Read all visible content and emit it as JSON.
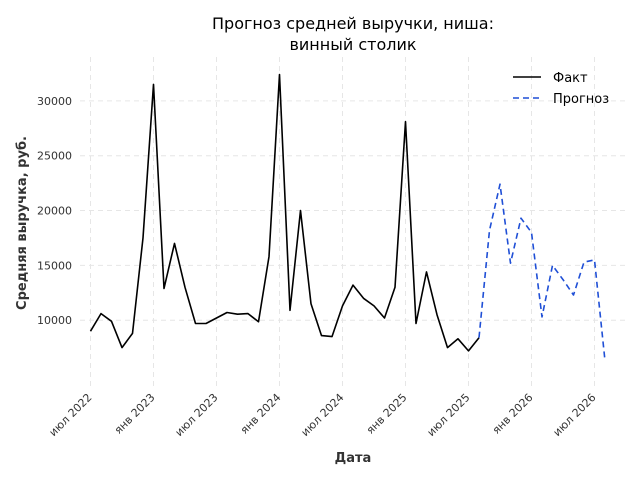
{
  "chart_data": {
    "type": "line",
    "title": [
      "Прогноз средней выручки, ниша:",
      "винный столик"
    ],
    "xlabel": "Дата",
    "ylabel": "Средняя выручка, руб.",
    "ylim": [
      4000,
      34000
    ],
    "yticks": [
      10000,
      15000,
      20000,
      25000,
      30000
    ],
    "xticks": [
      {
        "date": "2022-07",
        "label": "июл 2022"
      },
      {
        "date": "2023-01",
        "label": "янв 2023"
      },
      {
        "date": "2023-07",
        "label": "июл 2023"
      },
      {
        "date": "2024-01",
        "label": "янв 2024"
      },
      {
        "date": "2024-07",
        "label": "июл 2024"
      },
      {
        "date": "2025-01",
        "label": "янв 2025"
      },
      {
        "date": "2025-07",
        "label": "июл 2025"
      },
      {
        "date": "2026-01",
        "label": "янв 2026"
      },
      {
        "date": "2026-07",
        "label": "июл 2026"
      }
    ],
    "xlim": [
      "2022-06",
      "2026-10"
    ],
    "grid": true,
    "legend_position": "top-right",
    "series": [
      {
        "name": "Факт",
        "style": "solid",
        "color": "#000000",
        "x": [
          "2022-07",
          "2022-08",
          "2022-09",
          "2022-10",
          "2022-11",
          "2022-12",
          "2023-01",
          "2023-02",
          "2023-03",
          "2023-04",
          "2023-05",
          "2023-06",
          "2023-07",
          "2023-08",
          "2023-09",
          "2023-10",
          "2023-11",
          "2023-12",
          "2024-01",
          "2024-02",
          "2024-03",
          "2024-04",
          "2024-05",
          "2024-06",
          "2024-07",
          "2024-08",
          "2024-09",
          "2024-10",
          "2024-11",
          "2024-12",
          "2025-01",
          "2025-02",
          "2025-03",
          "2025-04",
          "2025-05",
          "2025-06",
          "2025-07",
          "2025-08"
        ],
        "y": [
          9000,
          10600,
          9900,
          7500,
          8800,
          17500,
          31500,
          12900,
          17000,
          13000,
          9700,
          9700,
          10200,
          10700,
          10550,
          10600,
          9850,
          15800,
          32400,
          10900,
          20000,
          11500,
          8600,
          8500,
          11300,
          13200,
          12000,
          11300,
          10200,
          13000,
          28100,
          9700,
          14400,
          10500,
          7500,
          8300,
          7200,
          8400
        ]
      },
      {
        "name": "Прогноз",
        "style": "dashed",
        "color": "#1f4fd6",
        "x": [
          "2025-08",
          "2025-09",
          "2025-10",
          "2025-11",
          "2025-12",
          "2026-01",
          "2026-02",
          "2026-03",
          "2026-04",
          "2026-05",
          "2026-06",
          "2026-07",
          "2026-08"
        ],
        "y": [
          8400,
          18200,
          22400,
          15200,
          19300,
          18000,
          10300,
          15000,
          13700,
          12300,
          15300,
          15500,
          6300
        ]
      }
    ]
  }
}
